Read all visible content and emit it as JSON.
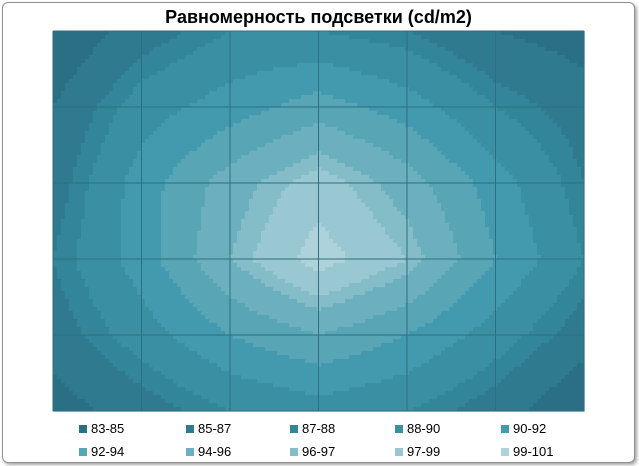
{
  "chart_data": {
    "type": "contour",
    "title": "Равномерность подсветки (cd/m2)",
    "xlabel": "",
    "ylabel": "",
    "grid": true,
    "legend_position": "bottom",
    "levels": [
      "83-85",
      "85-87",
      "87-88",
      "88-90",
      "90-92",
      "92-94",
      "94-96",
      "96-97",
      "97-99",
      "99-101"
    ],
    "level_colors": [
      "#2a6f84",
      "#2f7a8e",
      "#338599",
      "#3a8fa3",
      "#4399ad",
      "#58a5b6",
      "#6cb0bf",
      "#84bcc8",
      "#99c8d2",
      "#aed2da"
    ],
    "grid_values": [
      [
        83,
        86,
        88,
        88,
        87,
        85,
        84
      ],
      [
        85,
        89,
        91,
        93,
        91,
        88,
        86
      ],
      [
        86,
        91,
        95,
        98,
        95,
        91,
        87
      ],
      [
        87,
        91,
        96,
        100,
        97,
        92,
        88
      ],
      [
        86,
        89,
        92,
        94,
        92,
        89,
        86
      ],
      [
        84,
        86,
        88,
        89,
        88,
        86,
        83
      ]
    ]
  }
}
